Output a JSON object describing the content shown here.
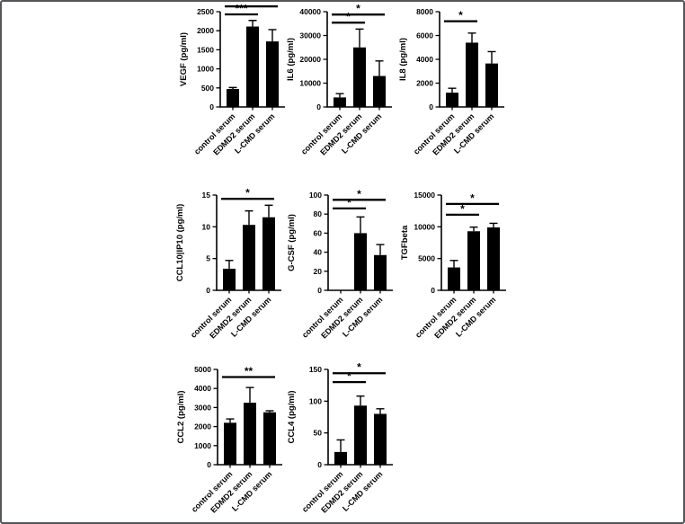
{
  "figure": {
    "description": "Eight-panel bar figure of serum cytokine levels with SD error bars and significance brackets",
    "categories": [
      "control serum",
      "EDMD2 serum",
      "L-CMD serum"
    ],
    "bar_color": "#000000",
    "axis_color": "#000000",
    "grid": "off",
    "legend": "none"
  },
  "chart_data": [
    {
      "type": "bar",
      "ylabel": "VEGF (pg/ml)",
      "categories": [
        "control serum",
        "EDMD2 serum",
        "L-CMD serum"
      ],
      "values": [
        470,
        2110,
        1720
      ],
      "errors": [
        40,
        160,
        310
      ],
      "ylim": [
        0,
        2500
      ],
      "yticks": [
        0,
        500,
        1000,
        1500,
        2000,
        2500
      ],
      "comparisons": [
        {
          "from": 0,
          "to": 1,
          "label": "***",
          "y": 2430
        },
        {
          "from": 0,
          "to": 2,
          "label": "*",
          "y": 2640
        }
      ]
    },
    {
      "type": "bar",
      "ylabel": "IL6 (pg/ml)",
      "categories": [
        "control serum",
        "EDMD2 serum",
        "L-CMD serum"
      ],
      "values": [
        4000,
        25000,
        13000
      ],
      "errors": [
        1600,
        7700,
        6300
      ],
      "ylim": [
        0,
        40000
      ],
      "yticks": [
        0,
        10000,
        20000,
        30000,
        40000
      ],
      "comparisons": [
        {
          "from": 0,
          "to": 1,
          "label": "*",
          "y": 35400
        },
        {
          "from": 0,
          "to": 2,
          "label": "*",
          "y": 38800
        }
      ]
    },
    {
      "type": "bar",
      "ylabel": "IL8 (pg/ml)",
      "categories": [
        "control serum",
        "EDMD2 serum",
        "L-CMD serum"
      ],
      "values": [
        1200,
        5400,
        3650
      ],
      "errors": [
        370,
        800,
        1000
      ],
      "ylim": [
        0,
        8000
      ],
      "yticks": [
        0,
        2000,
        4000,
        6000,
        8000
      ],
      "comparisons": [
        {
          "from": 0,
          "to": 1,
          "label": "*",
          "y": 7200
        }
      ]
    },
    {
      "type": "bar",
      "ylabel": "CCL10|IP10 (pg/ml)",
      "categories": [
        "control serum",
        "EDMD2 serum",
        "L-CMD serum"
      ],
      "values": [
        3.4,
        10.3,
        11.5
      ],
      "errors": [
        1.3,
        2.2,
        1.9
      ],
      "ylim": [
        0,
        15
      ],
      "yticks": [
        0,
        5,
        10,
        15
      ],
      "comparisons": [
        {
          "from": 0,
          "to": 2,
          "label": "*",
          "y": 14.4
        }
      ]
    },
    {
      "type": "bar",
      "ylabel": "G-CSF (pg/ml)",
      "categories": [
        "control serum",
        "EDMD2 serum",
        "L-CMD serum"
      ],
      "values": [
        0,
        60,
        37
      ],
      "errors": [
        0,
        17,
        11
      ],
      "ylim": [
        0,
        100
      ],
      "yticks": [
        0,
        20,
        40,
        60,
        80,
        100
      ],
      "comparisons": [
        {
          "from": 0,
          "to": 1,
          "label": "*",
          "y": 86
        },
        {
          "from": 0,
          "to": 2,
          "label": "*",
          "y": 95
        }
      ]
    },
    {
      "type": "bar",
      "ylabel": "TGFbeta",
      "categories": [
        "control serum",
        "EDMD2 serum",
        "L-CMD serum"
      ],
      "values": [
        3600,
        9300,
        9900
      ],
      "errors": [
        1100,
        650,
        650
      ],
      "ylim": [
        0,
        15000
      ],
      "yticks": [
        0,
        5000,
        10000,
        15000
      ],
      "comparisons": [
        {
          "from": 0,
          "to": 1,
          "label": "*",
          "y": 11900
        },
        {
          "from": 0,
          "to": 2,
          "label": "*",
          "y": 13600
        }
      ]
    },
    {
      "type": "bar",
      "ylabel": "CCL2 (pg/ml)",
      "categories": [
        "control serum",
        "EDMD2 serum",
        "L-CMD serum"
      ],
      "values": [
        2200,
        3250,
        2750
      ],
      "errors": [
        200,
        800,
        80
      ],
      "ylim": [
        0,
        5000
      ],
      "yticks": [
        0,
        1000,
        2000,
        3000,
        4000,
        5000
      ],
      "comparisons": [
        {
          "from": 0,
          "to": 2,
          "label": "**",
          "y": 4600
        }
      ]
    },
    {
      "type": "bar",
      "ylabel": "CCL4 (pg/ml)",
      "categories": [
        "control serum",
        "EDMD2 serum",
        "L-CMD serum"
      ],
      "values": [
        20,
        93,
        80
      ],
      "errors": [
        19,
        15,
        8
      ],
      "ylim": [
        0,
        150
      ],
      "yticks": [
        0,
        50,
        100,
        150
      ],
      "comparisons": [
        {
          "from": 0,
          "to": 1,
          "label": "*",
          "y": 130
        },
        {
          "from": 0,
          "to": 2,
          "label": "*",
          "y": 144
        }
      ]
    }
  ]
}
